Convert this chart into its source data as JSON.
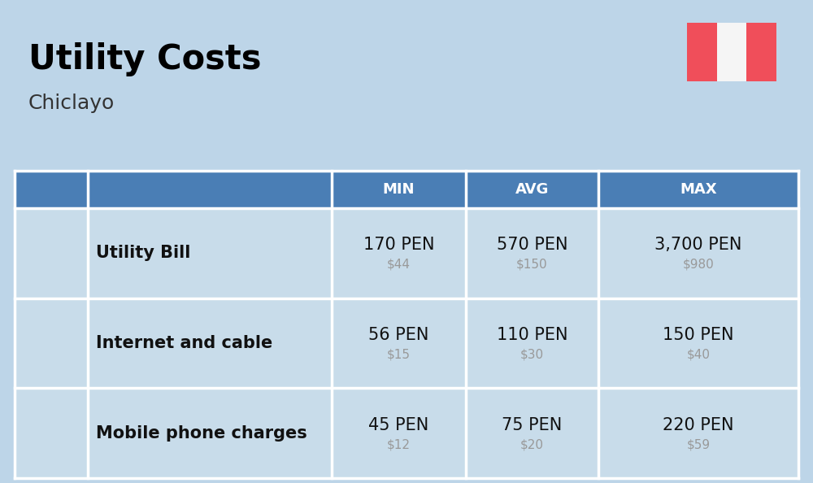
{
  "title": "Utility Costs",
  "subtitle": "Chiclayo",
  "background_color": "#bdd5e8",
  "header_bg_color": "#4a7eb5",
  "header_text_color": "#ffffff",
  "row_bg_color": "#c8dcea",
  "table_border_color": "#ffffff",
  "rows": [
    {
      "label": "Utility Bill",
      "min_pen": "170 PEN",
      "min_usd": "$44",
      "avg_pen": "570 PEN",
      "avg_usd": "$150",
      "max_pen": "3,700 PEN",
      "max_usd": "$980"
    },
    {
      "label": "Internet and cable",
      "min_pen": "56 PEN",
      "min_usd": "$15",
      "avg_pen": "110 PEN",
      "avg_usd": "$30",
      "max_pen": "150 PEN",
      "max_usd": "$40"
    },
    {
      "label": "Mobile phone charges",
      "min_pen": "45 PEN",
      "min_usd": "$12",
      "avg_pen": "75 PEN",
      "avg_usd": "$20",
      "max_pen": "220 PEN",
      "max_usd": "$59"
    }
  ],
  "pen_fontsize": 15,
  "usd_fontsize": 11,
  "label_fontsize": 15,
  "header_fontsize": 13,
  "title_fontsize": 30,
  "subtitle_fontsize": 18,
  "pen_color": "#111111",
  "usd_color": "#999999",
  "label_color": "#111111",
  "flag_red": "#f04e5a",
  "flag_white": "#f5f5f5",
  "title_color": "#000000",
  "subtitle_color": "#333333"
}
